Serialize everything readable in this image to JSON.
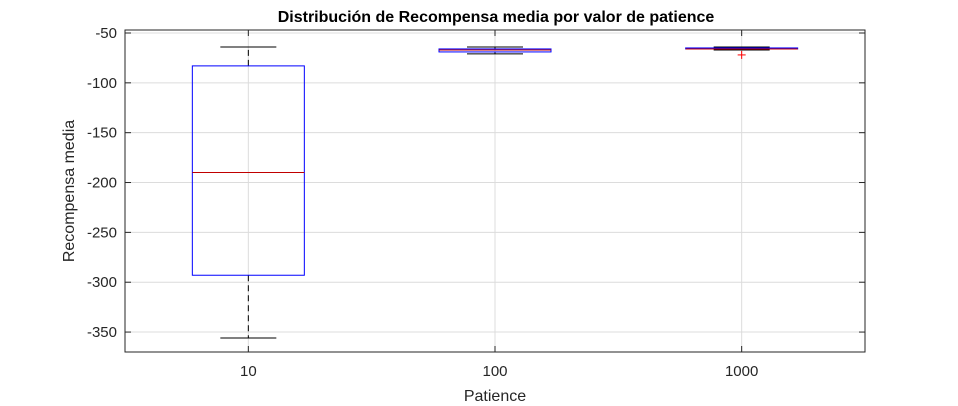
{
  "chart_data": {
    "type": "box",
    "title": "Distribución de Recompensa media por valor de patience",
    "xlabel": "Patience",
    "ylabel": "Recompensa media",
    "ylim": [
      -370,
      -47
    ],
    "yticks": [
      -50,
      -100,
      -150,
      -200,
      -250,
      -300,
      -350
    ],
    "ytick_labels": [
      "-50",
      "-100",
      "-150",
      "-200",
      "-250",
      "-300",
      "-350"
    ],
    "categories": [
      "10",
      "100",
      "1000"
    ],
    "boxes": [
      {
        "category": "10",
        "whisker_low": -356,
        "q1": -293,
        "median": -190,
        "q3": -83,
        "whisker_high": -64,
        "outliers": []
      },
      {
        "category": "100",
        "whisker_low": -71,
        "q1": -69,
        "median": -67,
        "q3": -66,
        "whisker_high": -64,
        "outliers": []
      },
      {
        "category": "1000",
        "whisker_low": -67,
        "q1": -66,
        "median": -66,
        "q3": -65,
        "whisker_high": -64,
        "outliers": [
          -72
        ]
      }
    ],
    "grid": true,
    "colors": {
      "box": "#0000ff",
      "median": "#c00000",
      "whisker": "#000000",
      "outlier": "#ff0000",
      "grid": "#dcdcdc",
      "axis": "#262626"
    }
  }
}
